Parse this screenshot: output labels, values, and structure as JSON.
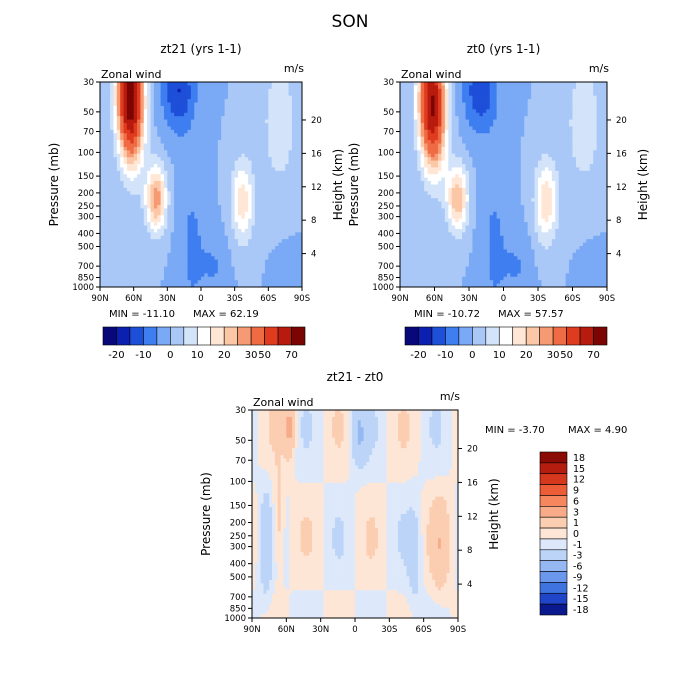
{
  "figure_title": "SON",
  "chart_data": [
    {
      "type": "heatmap",
      "title": "zt21 (yrs 1-1)",
      "label_left": "Zonal wind",
      "units": "m/s",
      "ylabel": "Pressure (mb)",
      "ylabel_right": "Height (km)",
      "x_ticks": [
        "90N",
        "60N",
        "30N",
        "0",
        "30S",
        "60S",
        "90S"
      ],
      "y_ticks": [
        "30",
        "50",
        "70",
        "100",
        "150",
        "200",
        "250",
        "300",
        "400",
        "500",
        "700",
        "850",
        "1000"
      ],
      "y_ticks_right": [
        "20",
        "16",
        "12",
        "8",
        "4"
      ],
      "min_text": "MIN = -11.10",
      "max_text": "MAX = 62.19",
      "colorbar_labels": [
        "-20",
        "-10",
        "0",
        "10",
        "20",
        "30",
        "50",
        "70"
      ],
      "fields": {
        "jet_sh": {
          "lat": 63,
          "p": 40,
          "amp": 70
        },
        "jet_nh": {
          "lat": -37,
          "p": 230,
          "amp": 18
        },
        "easterly_core": {
          "lat": 20,
          "p": 35,
          "amp": -15
        }
      }
    },
    {
      "type": "heatmap",
      "title": "zt0 (yrs 1-1)",
      "label_left": "Zonal wind",
      "units": "m/s",
      "ylabel": "Pressure (mb)",
      "ylabel_right": "Height (km)",
      "x_ticks": [
        "90N",
        "60N",
        "30N",
        "0",
        "30S",
        "60S",
        "90S"
      ],
      "y_ticks": [
        "30",
        "50",
        "70",
        "100",
        "150",
        "200",
        "250",
        "300",
        "400",
        "500",
        "700",
        "850",
        "1000"
      ],
      "y_ticks_right": [
        "20",
        "16",
        "12",
        "8",
        "4"
      ],
      "min_text": "MIN = -10.72",
      "max_text": "MAX = 57.57",
      "colorbar_labels": [
        "-20",
        "-10",
        "0",
        "10",
        "20",
        "30",
        "50",
        "70"
      ],
      "fields": {
        "jet_sh": {
          "lat": 62,
          "p": 45,
          "amp": 62
        },
        "jet_nh": {
          "lat": -37,
          "p": 230,
          "amp": 19
        },
        "easterly_core": {
          "lat": 20,
          "p": 35,
          "amp": -14
        }
      }
    },
    {
      "type": "heatmap",
      "title": "zt21 - zt0",
      "label_left": "Zonal wind",
      "units": "m/s",
      "ylabel": "Pressure (mb)",
      "ylabel_right": "Height (km)",
      "x_ticks": [
        "90N",
        "60N",
        "30N",
        "0",
        "30S",
        "60S",
        "90S"
      ],
      "y_ticks": [
        "30",
        "50",
        "70",
        "100",
        "150",
        "200",
        "250",
        "300",
        "400",
        "500",
        "700",
        "850",
        "1000"
      ],
      "y_ticks_right": [
        "20",
        "16",
        "12",
        "8",
        "4"
      ],
      "min_text": "MIN =   -3.70",
      "max_text": "MAX =    4.90",
      "colorbar_labels": [
        "18",
        "15",
        "12",
        "9",
        "6",
        "3",
        "1",
        "0",
        "-1",
        "-3",
        "-6",
        "-9",
        "-12",
        "-15",
        "-18"
      ]
    }
  ],
  "colors": {
    "zonal_scale": [
      "#08087a",
      "#0b1fb0",
      "#1d4fd9",
      "#3f7ef0",
      "#7aa9f5",
      "#a9c8f7",
      "#d2e3fa",
      "#ffffff",
      "#ffe6d5",
      "#fbc7a6",
      "#f59a72",
      "#ee6b44",
      "#df3b1f",
      "#b71b0d",
      "#7a0503"
    ],
    "diff_scale": [
      "#8a0a04",
      "#b51d0f",
      "#d5381c",
      "#ec5d37",
      "#f5865e",
      "#f8ab89",
      "#fbcdb1",
      "#fde6d6",
      "#dde9fb",
      "#bcd4f7",
      "#95b8f2",
      "#6b98ec",
      "#3f74e0",
      "#2045c8",
      "#0a1a8e"
    ]
  }
}
